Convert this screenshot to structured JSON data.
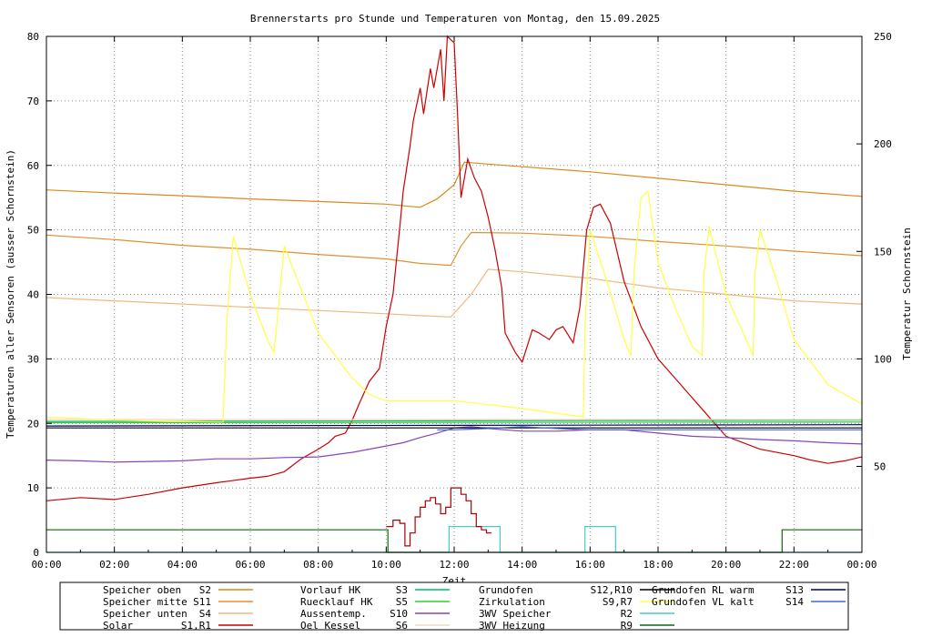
{
  "chart_data": {
    "type": "line",
    "title": "Brennerstarts pro Stunde und Temperaturen von Montag, den 15.09.2025",
    "xlabel": "Zeit",
    "ylabel": "Temperaturen aller Sensoren (ausser Schornstein)",
    "y2label": "Temperatur Schornstein",
    "y2label_color": "#ee44ee",
    "xlim": [
      0,
      24
    ],
    "ylim": [
      0,
      80
    ],
    "y2lim": [
      10,
      250
    ],
    "grid": true,
    "legend_position": "bottom",
    "x_ticks": [
      {
        "v": 0,
        "label": "00:00"
      },
      {
        "v": 2,
        "label": "02:00"
      },
      {
        "v": 4,
        "label": "04:00"
      },
      {
        "v": 6,
        "label": "06:00"
      },
      {
        "v": 8,
        "label": "08:00"
      },
      {
        "v": 10,
        "label": "10:00"
      },
      {
        "v": 12,
        "label": "12:00"
      },
      {
        "v": 14,
        "label": "14:00"
      },
      {
        "v": 16,
        "label": "16:00"
      },
      {
        "v": 18,
        "label": "18:00"
      },
      {
        "v": 20,
        "label": "20:00"
      },
      {
        "v": 22,
        "label": "22:00"
      },
      {
        "v": 24,
        "label": "00:00"
      }
    ],
    "y_ticks": [
      {
        "v": 0,
        "label": "0"
      },
      {
        "v": 10,
        "label": "10"
      },
      {
        "v": 20,
        "label": "20"
      },
      {
        "v": 30,
        "label": "30"
      },
      {
        "v": 40,
        "label": "40"
      },
      {
        "v": 50,
        "label": "50"
      },
      {
        "v": 60,
        "label": "60"
      },
      {
        "v": 70,
        "label": "70"
      },
      {
        "v": 80,
        "label": "80"
      }
    ],
    "y2_ticks": [
      {
        "v": 50,
        "label": "50"
      },
      {
        "v": 100,
        "label": "100"
      },
      {
        "v": 150,
        "label": "150"
      },
      {
        "v": 200,
        "label": "200"
      },
      {
        "v": 250,
        "label": "250"
      }
    ],
    "series": [
      {
        "name": "Speicher oben",
        "sensor": "S2",
        "color": "#d98a1a",
        "step": false,
        "x": [
          0,
          2,
          4,
          6,
          8,
          10,
          11,
          11.5,
          12,
          12.3,
          13,
          14,
          16,
          18,
          20,
          22,
          24
        ],
        "y": [
          56.2,
          55.7,
          55.3,
          54.8,
          54.4,
          54,
          53.5,
          54.8,
          57,
          60.5,
          60.2,
          59.8,
          59,
          58,
          57,
          56,
          55.2
        ]
      },
      {
        "name": "Speicher mitte",
        "sensor": "S11",
        "color": "#e09030",
        "step": false,
        "x": [
          0,
          2,
          4,
          6,
          8,
          10,
          11,
          11.9,
          12.2,
          12.5,
          14,
          16,
          18,
          20,
          22,
          24
        ],
        "y": [
          49.2,
          48.5,
          47.6,
          47,
          46.2,
          45.5,
          44.8,
          44.5,
          47.5,
          49.6,
          49.5,
          49,
          48.2,
          47.5,
          46.7,
          46
        ]
      },
      {
        "name": "Speicher unten",
        "sensor": "S4",
        "color": "#f0b880",
        "step": false,
        "x": [
          0,
          2,
          4,
          6,
          8,
          10,
          11,
          11.9,
          12.5,
          13,
          14,
          16,
          18,
          20,
          22,
          24
        ],
        "y": [
          39.5,
          39,
          38.5,
          38,
          37.5,
          37,
          36.7,
          36.5,
          40,
          43.9,
          43.5,
          42.5,
          41,
          40,
          39,
          38.5
        ]
      },
      {
        "name": "Solar",
        "sensor": "S1,R1",
        "color": "#cc0000",
        "step": false,
        "x": [
          0,
          1,
          2,
          3,
          4,
          5,
          6,
          6.5,
          7,
          7.5,
          8,
          8.3,
          8.5,
          8.8,
          9,
          9.2,
          9.5,
          9.8,
          10,
          10.2,
          10.4,
          10.5,
          10.7,
          10.8,
          11,
          11.1,
          11.3,
          11.4,
          11.6,
          11.7,
          11.8,
          12,
          12.1,
          12.2,
          12.4,
          12.6,
          12.8,
          13,
          13.2,
          13.4,
          13.5,
          13.8,
          14,
          14.3,
          14.5,
          14.8,
          15,
          15.2,
          15.5,
          15.7,
          15.9,
          16.1,
          16.3,
          16.6,
          17,
          17.5,
          18,
          18.5,
          19,
          19.5,
          20,
          21,
          22,
          22.5,
          23,
          23.5,
          24
        ],
        "y": [
          8,
          8.5,
          8.2,
          9,
          10,
          10.8,
          11.5,
          11.8,
          12.5,
          14.5,
          16,
          17,
          18,
          18.5,
          20.5,
          23,
          26.5,
          28.5,
          35,
          40,
          50.5,
          56,
          63,
          67,
          72,
          68,
          75,
          72,
          78,
          70,
          80,
          79,
          68,
          55,
          61,
          58,
          56,
          52,
          47,
          41,
          34,
          31,
          29.5,
          34.5,
          34,
          33,
          34.5,
          35,
          32.5,
          38,
          50,
          53.5,
          54,
          51,
          42,
          35,
          30,
          27,
          24,
          21,
          18,
          16,
          15,
          14.3,
          13.8,
          14.2,
          14.8
        ]
      },
      {
        "name": "Vorlauf HK",
        "sensor": "S3",
        "color": "#00bb66",
        "step": false,
        "x": [
          0,
          24
        ],
        "y": [
          20.3,
          20.5
        ]
      },
      {
        "name": "Ruecklauf HK",
        "sensor": "S5",
        "color": "#33cc33",
        "step": false,
        "x": [
          0,
          24
        ],
        "y": [
          20.1,
          20.2
        ]
      },
      {
        "name": "Aussentemp.",
        "sensor": "S10",
        "color": "#8844bb",
        "step": false,
        "x": [
          0,
          1,
          2,
          3,
          4,
          5,
          6,
          7,
          8,
          9,
          10,
          10.5,
          11,
          11.5,
          12,
          12.5,
          13,
          14,
          15,
          16,
          17,
          18,
          19,
          20,
          21,
          22,
          23,
          24
        ],
        "y": [
          14.3,
          14.2,
          14,
          14.1,
          14.2,
          14.5,
          14.5,
          14.7,
          14.8,
          15.5,
          16.5,
          17,
          17.8,
          18.5,
          19.3,
          19.5,
          19.2,
          18.8,
          18.8,
          19,
          19,
          18.5,
          18,
          17.8,
          17.5,
          17.3,
          17,
          16.8
        ]
      },
      {
        "name": "Oel Kessel",
        "sensor": "S6",
        "color": "#f0d8c0",
        "step": false,
        "x": [
          0,
          24
        ],
        "y": [
          20.6,
          20.6
        ]
      },
      {
        "name": "Grundofen",
        "sensor": "S12,R10",
        "color": "#000000",
        "step": false,
        "x": [
          0,
          24
        ],
        "y": [
          19.3,
          19.3
        ]
      },
      {
        "name": "Zirkulation",
        "sensor": "S9,R7",
        "color": "#ffff44",
        "step": false,
        "x": [
          0,
          2,
          4,
          5.2,
          5.3,
          5.5,
          6,
          6.5,
          6.7,
          7,
          8,
          9,
          9.5,
          10,
          12,
          14,
          15.8,
          15.85,
          16,
          16.5,
          17,
          17.2,
          17.3,
          17.5,
          17.7,
          18,
          18.5,
          19,
          19.3,
          19.35,
          19.5,
          20,
          20.8,
          20.85,
          21,
          21.5,
          22,
          23,
          24
        ],
        "y": [
          21,
          20.5,
          20.3,
          20.2,
          35,
          49,
          40,
          33,
          31,
          47.5,
          34,
          27,
          24.5,
          23.5,
          23.5,
          22.3,
          21,
          35,
          50,
          42,
          33,
          30.5,
          44,
          55,
          56,
          45,
          38,
          32,
          30.5,
          43,
          50.5,
          40,
          30.5,
          43,
          50,
          42,
          33,
          26,
          23
        ]
      },
      {
        "name": "3WV Speicher",
        "sensor": "R2",
        "color": "#44cccc",
        "step": true,
        "x": [
          0,
          11.8,
          11.85,
          13.3,
          13.35,
          15.8,
          15.85,
          16.7,
          16.75,
          24
        ],
        "y": [
          0,
          0,
          4,
          4,
          0,
          0,
          4,
          4,
          0,
          0
        ]
      },
      {
        "name": "Grundofen RL warm",
        "sensor": "S13",
        "color": "#000066",
        "step": false,
        "x": [
          0,
          24
        ],
        "y": [
          19.6,
          19.8
        ]
      },
      {
        "name": "Grundofen VL kalt",
        "sensor": "S14",
        "color": "#4466dd",
        "step": false,
        "x": [
          11.5,
          12,
          13,
          14,
          15,
          16,
          17,
          18,
          19,
          20,
          21,
          22,
          23,
          24
        ],
        "y": [
          19,
          19,
          19.2,
          19.5,
          19.2,
          19,
          19,
          19,
          19,
          19,
          19,
          19,
          19,
          19
        ]
      },
      {
        "name": "3WV Heizung",
        "sensor": "R9",
        "color": "#116611",
        "step": true,
        "x": [
          0,
          10,
          10.05,
          21.6,
          21.65,
          24
        ],
        "y": [
          3.5,
          3.5,
          0,
          0,
          3.5,
          3.5
        ]
      }
    ],
    "burner_starts": {
      "name": "Brennerstarts pro Stunde",
      "color": "#aa0000",
      "x": [
        10,
        10.2,
        10.4,
        10.55,
        10.7,
        10.85,
        11,
        11.15,
        11.3,
        11.45,
        11.6,
        11.75,
        11.9,
        12.05,
        12.2,
        12.35,
        12.5,
        12.65,
        12.8,
        12.95,
        13.1
      ],
      "y": [
        4,
        5,
        4.5,
        1,
        3,
        5.5,
        7,
        8,
        8.5,
        7.5,
        6,
        7,
        10,
        10,
        9,
        8,
        6,
        4,
        3.5,
        3,
        3
      ]
    },
    "legend": [
      {
        "label": "Speicher oben",
        "sensor": "S2",
        "color": "#d98a1a"
      },
      {
        "label": "Speicher mitte",
        "sensor": "S11",
        "color": "#e09030"
      },
      {
        "label": "Speicher unten",
        "sensor": "S4",
        "color": "#f0b880"
      },
      {
        "label": "Solar",
        "sensor": "S1,R1",
        "color": "#cc0000"
      },
      {
        "label": "Vorlauf HK",
        "sensor": "S3",
        "color": "#00bb66"
      },
      {
        "label": "Ruecklauf HK",
        "sensor": "S5",
        "color": "#33cc33"
      },
      {
        "label": "Aussentemp.",
        "sensor": "S10",
        "color": "#8844bb"
      },
      {
        "label": "Oel Kessel",
        "sensor": "S6",
        "color": "#f0d8c0"
      },
      {
        "label": "Grundofen",
        "sensor": "S12,R10",
        "color": "#000000"
      },
      {
        "label": "Zirkulation",
        "sensor": "S9,R7",
        "color": "#ffff44"
      },
      {
        "label": "3WV Speicher",
        "sensor": "R2",
        "color": "#44cccc"
      },
      {
        "label": "3WV Heizung",
        "sensor": "R9",
        "color": "#116611"
      },
      {
        "label": "Grundofen RL warm",
        "sensor": "S13",
        "color": "#000066"
      },
      {
        "label": "Grundofen VL kalt",
        "sensor": "S14",
        "color": "#4466dd"
      }
    ]
  }
}
